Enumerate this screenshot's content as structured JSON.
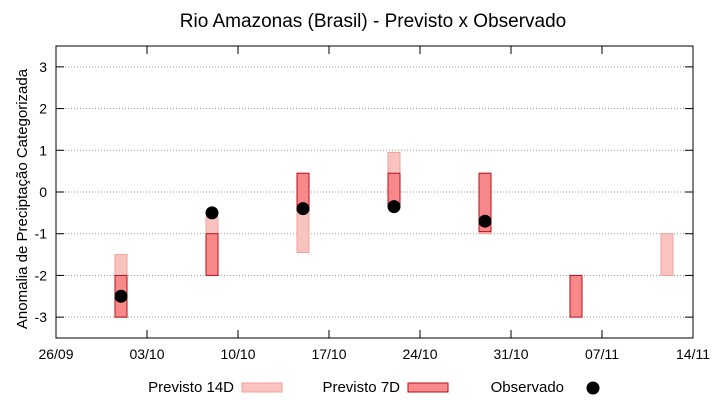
{
  "chart_data": {
    "type": "range-bar",
    "title": "Rio Amazonas (Brasil) - Previsto x Observado",
    "ylabel": "Anomalia de Preciptação Categorizada",
    "xlabel": "",
    "x_tick_labels": [
      "26/09",
      "03/10",
      "10/10",
      "17/10",
      "24/10",
      "31/10",
      "07/11",
      "14/11"
    ],
    "x_tick_values": [
      0,
      7,
      14,
      21,
      28,
      35,
      42,
      49
    ],
    "xlim": [
      0,
      49
    ],
    "y_tick_labels": [
      "3",
      "2",
      "1",
      "0",
      "-1",
      "-2",
      "-3"
    ],
    "y_tick_values": [
      3,
      2,
      1,
      0,
      -1,
      -2,
      -3
    ],
    "ylim": [
      -3.5,
      3.5
    ],
    "grid": true,
    "series": [
      {
        "name": "Previsto 14D",
        "key": "p14",
        "color": "#f9c4c0",
        "edge": "#f29f98",
        "points": [
          {
            "x": 5,
            "low": -3.0,
            "high": -1.5
          },
          {
            "x": 12,
            "low": -2.0,
            "high": -0.6
          },
          {
            "x": 19,
            "low": -1.45,
            "high": 0.45
          },
          {
            "x": 26,
            "low": -0.3,
            "high": 0.95
          },
          {
            "x": 33,
            "low": -1.0,
            "high": 0.45
          },
          {
            "x": 47,
            "low": -2.0,
            "high": -1.0
          }
        ]
      },
      {
        "name": "Previsto 7D",
        "key": "p7",
        "color": "#f7898a",
        "edge": "#b80e1a",
        "points": [
          {
            "x": 5,
            "low": -3.0,
            "high": -2.0
          },
          {
            "x": 12,
            "low": -2.0,
            "high": -1.0
          },
          {
            "x": 19,
            "low": -0.45,
            "high": 0.45
          },
          {
            "x": 26,
            "low": -0.35,
            "high": 0.45
          },
          {
            "x": 33,
            "low": -0.95,
            "high": 0.45
          },
          {
            "x": 40,
            "low": -3.0,
            "high": -2.0
          }
        ]
      },
      {
        "name": "Observado",
        "key": "obs",
        "color": "#000000",
        "points": [
          {
            "x": 5,
            "y": -2.5
          },
          {
            "x": 12,
            "y": -0.5
          },
          {
            "x": 19,
            "y": -0.4
          },
          {
            "x": 26,
            "y": -0.35
          },
          {
            "x": 33,
            "y": -0.7
          }
        ]
      }
    ],
    "legend": {
      "position": "bottom",
      "items": [
        "Previsto 14D",
        "Previsto 7D",
        "Observado"
      ]
    }
  }
}
